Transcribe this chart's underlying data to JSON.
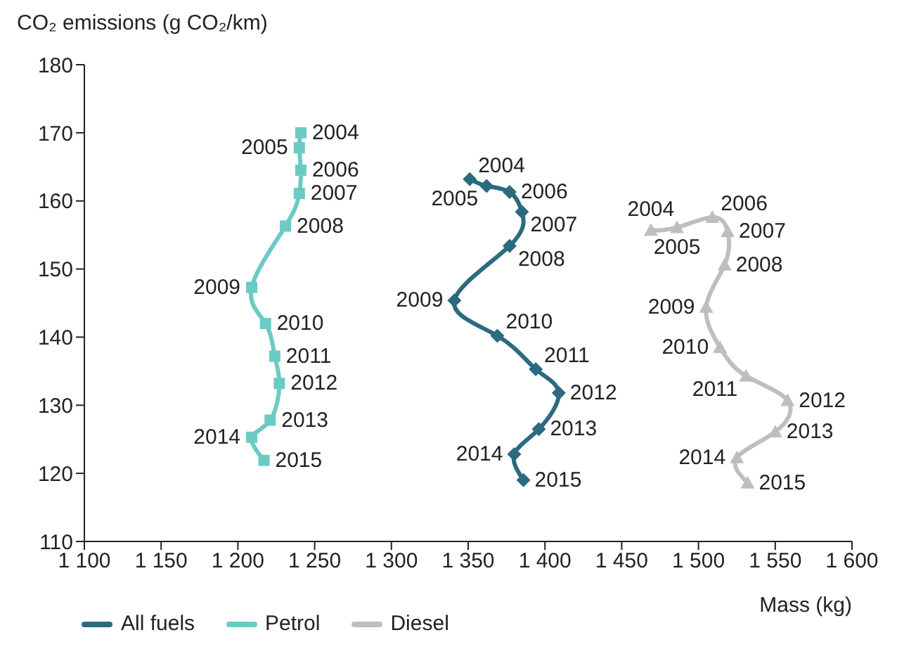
{
  "chart_data": {
    "type": "line",
    "ylabel": "CO₂ emissions (g CO₂/km)",
    "xlabel": "Mass (kg)",
    "xlim": [
      1100,
      1600
    ],
    "xticks": [
      {
        "value": 1100,
        "label": "1 100"
      },
      {
        "value": 1150,
        "label": "1 150"
      },
      {
        "value": 1200,
        "label": "1 200"
      },
      {
        "value": 1250,
        "label": "1 250"
      },
      {
        "value": 1300,
        "label": "1 300"
      },
      {
        "value": 1350,
        "label": "1 350"
      },
      {
        "value": 1400,
        "label": "1 400"
      },
      {
        "value": 1450,
        "label": "1 450"
      },
      {
        "value": 1500,
        "label": "1 500"
      },
      {
        "value": 1550,
        "label": "1 550"
      },
      {
        "value": 1600,
        "label": "1 600"
      }
    ],
    "ylim": [
      110,
      180
    ],
    "yticks": [
      110,
      120,
      130,
      140,
      150,
      160,
      170,
      180
    ],
    "grid": false,
    "legend": "bottom",
    "series": [
      {
        "name": "All fuels",
        "color": "#2b6a7f",
        "marker": "diamond",
        "x": [
          1351,
          1362,
          1377,
          1385,
          1377,
          1341,
          1369,
          1394,
          1409,
          1396,
          1380,
          1386
        ],
        "values": [
          163.2,
          162.2,
          161.3,
          158.4,
          153.4,
          145.4,
          140.2,
          135.3,
          131.8,
          126.5,
          122.8,
          119
        ]
      },
      {
        "name": "Petrol",
        "color": "#6ccac4",
        "marker": "square",
        "x": [
          1241,
          1240,
          1241,
          1240,
          1231,
          1209,
          1218,
          1224,
          1227,
          1221,
          1209,
          1217
        ],
        "values": [
          170,
          167.8,
          164.5,
          161.1,
          156.3,
          147.3,
          142,
          137.2,
          133.2,
          127.8,
          125.3,
          121.9
        ]
      },
      {
        "name": "Diesel",
        "color": "#bcbec0",
        "marker": "triangle",
        "x": [
          1469,
          1486,
          1509,
          1519,
          1517,
          1505,
          1514,
          1531,
          1558,
          1550,
          1525,
          1532
        ],
        "values": [
          155.7,
          156.1,
          157.6,
          155.5,
          150.6,
          144.4,
          138.5,
          134.3,
          130.7,
          126.1,
          122.3,
          118.6
        ]
      }
    ],
    "annotations": [
      {
        "text": "2004",
        "x": 1351,
        "y": 163.2
      },
      {
        "text": "2005",
        "x": 1362,
        "y": 162.2
      },
      {
        "text": "2006",
        "x": 1377,
        "y": 161.3
      },
      {
        "text": "2007",
        "x": 1385,
        "y": 158.4
      },
      {
        "text": "2008",
        "x": 1377,
        "y": 153.4
      },
      {
        "text": "2009",
        "x": 1341,
        "y": 145.4
      },
      {
        "text": "2010",
        "x": 1369,
        "y": 140.2
      },
      {
        "text": "2011",
        "x": 1394,
        "y": 135.3
      },
      {
        "text": "2012",
        "x": 1409,
        "y": 131.8
      },
      {
        "text": "2013",
        "x": 1396,
        "y": 126.5
      },
      {
        "text": "2014",
        "x": 1380,
        "y": 122.8
      },
      {
        "text": "2015",
        "x": 1386,
        "y": 119
      },
      {
        "text": "2004",
        "x": 1241,
        "y": 170
      },
      {
        "text": "2005",
        "x": 1240,
        "y": 167.8
      },
      {
        "text": "2006",
        "x": 1241,
        "y": 164.5
      },
      {
        "text": "2007",
        "x": 1240,
        "y": 161.1
      },
      {
        "text": "2008",
        "x": 1231,
        "y": 156.3
      },
      {
        "text": "2009",
        "x": 1209,
        "y": 147.3
      },
      {
        "text": "2010",
        "x": 1218,
        "y": 142
      },
      {
        "text": "2011",
        "x": 1224,
        "y": 137.2
      },
      {
        "text": "2012",
        "x": 1227,
        "y": 133.2
      },
      {
        "text": "2013",
        "x": 1221,
        "y": 127.8
      },
      {
        "text": "2014",
        "x": 1209,
        "y": 125.3
      },
      {
        "text": "2015",
        "x": 1217,
        "y": 121.9
      },
      {
        "text": "2004",
        "x": 1469,
        "y": 155.7
      },
      {
        "text": "2005",
        "x": 1486,
        "y": 156.1
      },
      {
        "text": "2006",
        "x": 1509,
        "y": 157.6
      },
      {
        "text": "2007",
        "x": 1519,
        "y": 155.5
      },
      {
        "text": "2008",
        "x": 1517,
        "y": 150.6
      },
      {
        "text": "2009",
        "x": 1505,
        "y": 144.4
      },
      {
        "text": "2010",
        "x": 1514,
        "y": 138.5
      },
      {
        "text": "2011",
        "x": 1531,
        "y": 134.3
      },
      {
        "text": "2012",
        "x": 1558,
        "y": 130.7
      },
      {
        "text": "2013",
        "x": 1550,
        "y": 126.1
      },
      {
        "text": "2014",
        "x": 1525,
        "y": 122.3
      },
      {
        "text": "2015",
        "x": 1532,
        "y": 118.6
      }
    ]
  }
}
